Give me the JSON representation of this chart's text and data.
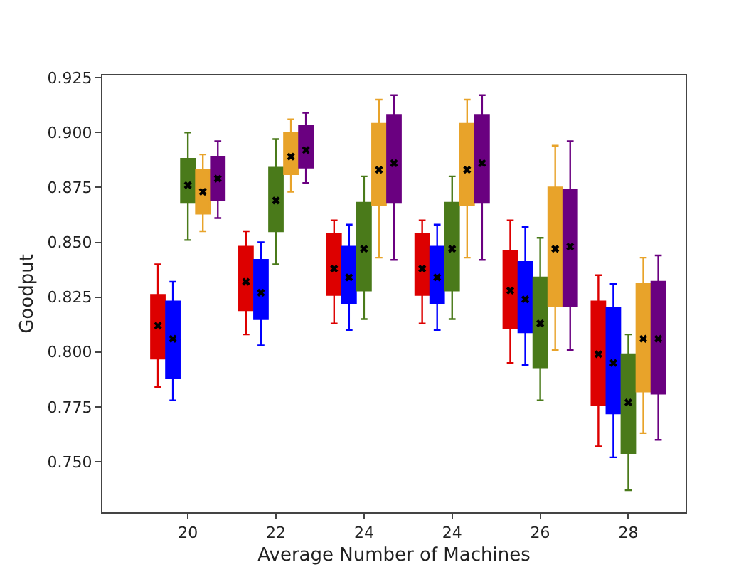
{
  "chart_data": {
    "type": "box",
    "xlabel": "Average Number of Machines",
    "ylabel": "Goodput",
    "categories": [
      "20",
      "22",
      "24",
      "24",
      "26",
      "28"
    ],
    "ylim": [
      0.727,
      0.926
    ],
    "yticks": [
      {
        "value": 0.75,
        "label": "0.750"
      },
      {
        "value": 0.775,
        "label": "0.775"
      },
      {
        "value": 0.8,
        "label": "0.800"
      },
      {
        "value": 0.825,
        "label": "0.825"
      },
      {
        "value": 0.85,
        "label": "0.850"
      },
      {
        "value": 0.875,
        "label": "0.875"
      },
      {
        "value": 0.9,
        "label": "0.900"
      },
      {
        "value": 0.925,
        "label": "0.925"
      }
    ],
    "grid": false,
    "marker": "cross",
    "series": [
      {
        "color": "#dd0000",
        "boxes": [
          {
            "low": 0.784,
            "q1": 0.797,
            "median": 0.812,
            "q3": 0.826,
            "high": 0.84,
            "mean": 0.812
          },
          {
            "low": 0.808,
            "q1": 0.819,
            "median": 0.832,
            "q3": 0.848,
            "high": 0.855,
            "mean": 0.832
          },
          {
            "low": 0.813,
            "q1": 0.826,
            "median": 0.838,
            "q3": 0.854,
            "high": 0.86,
            "mean": 0.838
          },
          {
            "low": 0.813,
            "q1": 0.826,
            "median": 0.838,
            "q3": 0.854,
            "high": 0.86,
            "mean": 0.838
          },
          {
            "low": 0.795,
            "q1": 0.811,
            "median": 0.828,
            "q3": 0.846,
            "high": 0.86,
            "mean": 0.828
          },
          {
            "low": 0.757,
            "q1": 0.776,
            "median": 0.799,
            "q3": 0.823,
            "high": 0.835,
            "mean": 0.799
          }
        ]
      },
      {
        "color": "#0000ff",
        "boxes": [
          {
            "low": 0.778,
            "q1": 0.788,
            "median": 0.806,
            "q3": 0.823,
            "high": 0.832,
            "mean": 0.806
          },
          {
            "low": 0.803,
            "q1": 0.815,
            "median": 0.827,
            "q3": 0.842,
            "high": 0.85,
            "mean": 0.827
          },
          {
            "low": 0.81,
            "q1": 0.822,
            "median": 0.834,
            "q3": 0.848,
            "high": 0.858,
            "mean": 0.834
          },
          {
            "low": 0.81,
            "q1": 0.822,
            "median": 0.834,
            "q3": 0.848,
            "high": 0.858,
            "mean": 0.834
          },
          {
            "low": 0.794,
            "q1": 0.809,
            "median": 0.824,
            "q3": 0.841,
            "high": 0.857,
            "mean": 0.824
          },
          {
            "low": 0.752,
            "q1": 0.772,
            "median": 0.795,
            "q3": 0.82,
            "high": 0.831,
            "mean": 0.795
          }
        ]
      },
      {
        "color": "#4a7a1a",
        "boxes": [
          {
            "low": 0.851,
            "q1": 0.868,
            "median": 0.876,
            "q3": 0.888,
            "high": 0.9,
            "mean": 0.876
          },
          {
            "low": 0.84,
            "q1": 0.855,
            "median": 0.869,
            "q3": 0.884,
            "high": 0.897,
            "mean": 0.869
          },
          {
            "low": 0.815,
            "q1": 0.828,
            "median": 0.847,
            "q3": 0.868,
            "high": 0.88,
            "mean": 0.847
          },
          {
            "low": 0.815,
            "q1": 0.828,
            "median": 0.847,
            "q3": 0.868,
            "high": 0.88,
            "mean": 0.847
          },
          {
            "low": 0.778,
            "q1": 0.793,
            "median": 0.813,
            "q3": 0.834,
            "high": 0.852,
            "mean": 0.813
          },
          {
            "low": 0.737,
            "q1": 0.754,
            "median": 0.777,
            "q3": 0.799,
            "high": 0.808,
            "mean": 0.777
          }
        ]
      },
      {
        "color": "#e8a32a",
        "boxes": [
          {
            "low": 0.855,
            "q1": 0.863,
            "median": 0.873,
            "q3": 0.883,
            "high": 0.89,
            "mean": 0.873
          },
          {
            "low": 0.873,
            "q1": 0.881,
            "median": 0.889,
            "q3": 0.9,
            "high": 0.906,
            "mean": 0.889
          },
          {
            "low": 0.843,
            "q1": 0.867,
            "median": 0.883,
            "q3": 0.904,
            "high": 0.915,
            "mean": 0.883
          },
          {
            "low": 0.843,
            "q1": 0.867,
            "median": 0.883,
            "q3": 0.904,
            "high": 0.915,
            "mean": 0.883
          },
          {
            "low": 0.801,
            "q1": 0.821,
            "median": 0.847,
            "q3": 0.875,
            "high": 0.894,
            "mean": 0.847
          },
          {
            "low": 0.763,
            "q1": 0.782,
            "median": 0.806,
            "q3": 0.831,
            "high": 0.843,
            "mean": 0.806
          }
        ]
      },
      {
        "color": "#6a0080",
        "boxes": [
          {
            "low": 0.861,
            "q1": 0.869,
            "median": 0.879,
            "q3": 0.889,
            "high": 0.896,
            "mean": 0.879
          },
          {
            "low": 0.877,
            "q1": 0.884,
            "median": 0.892,
            "q3": 0.903,
            "high": 0.909,
            "mean": 0.892
          },
          {
            "low": 0.842,
            "q1": 0.868,
            "median": 0.886,
            "q3": 0.908,
            "high": 0.917,
            "mean": 0.886
          },
          {
            "low": 0.842,
            "q1": 0.868,
            "median": 0.886,
            "q3": 0.908,
            "high": 0.917,
            "mean": 0.886
          },
          {
            "low": 0.801,
            "q1": 0.821,
            "median": 0.848,
            "q3": 0.874,
            "high": 0.896,
            "mean": 0.848
          },
          {
            "low": 0.76,
            "q1": 0.781,
            "median": 0.806,
            "q3": 0.832,
            "high": 0.844,
            "mean": 0.806
          }
        ]
      }
    ]
  }
}
